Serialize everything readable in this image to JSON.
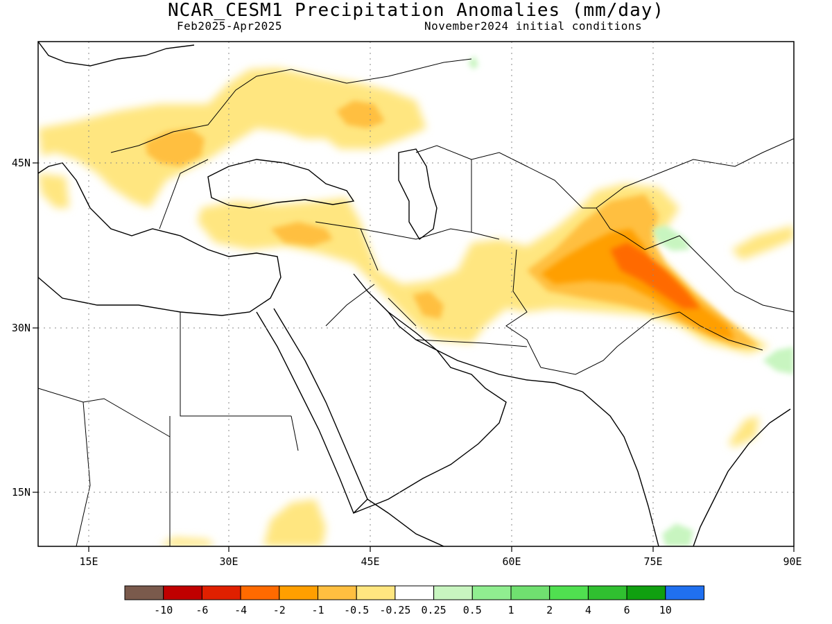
{
  "title": "NCAR_CESM1 Precipitation Anomalies (mm/day)",
  "period": "Feb2025-Apr2025",
  "init": "November2024 initial conditions",
  "map": {
    "lon_labels": [
      "15E",
      "30E",
      "45E",
      "60E",
      "75E",
      "90E"
    ],
    "lat_labels": [
      "45N",
      "30N",
      "15N"
    ]
  },
  "colorbar": {
    "colors": [
      "#7a5a4c",
      "#c00000",
      "#e02000",
      "#ff6a00",
      "#ff9f00",
      "#ffbf40",
      "#ffe680",
      "#ffffff",
      "#c8f5c0",
      "#90ee90",
      "#70e070",
      "#50e050",
      "#30c030",
      "#10a010",
      "#2070f0"
    ],
    "labels": [
      "-10",
      "-6",
      "-4",
      "-2",
      "-1",
      "-0.5",
      "-0.25",
      "0.25",
      "0.5",
      "1",
      "2",
      "4",
      "6",
      "10"
    ]
  }
}
